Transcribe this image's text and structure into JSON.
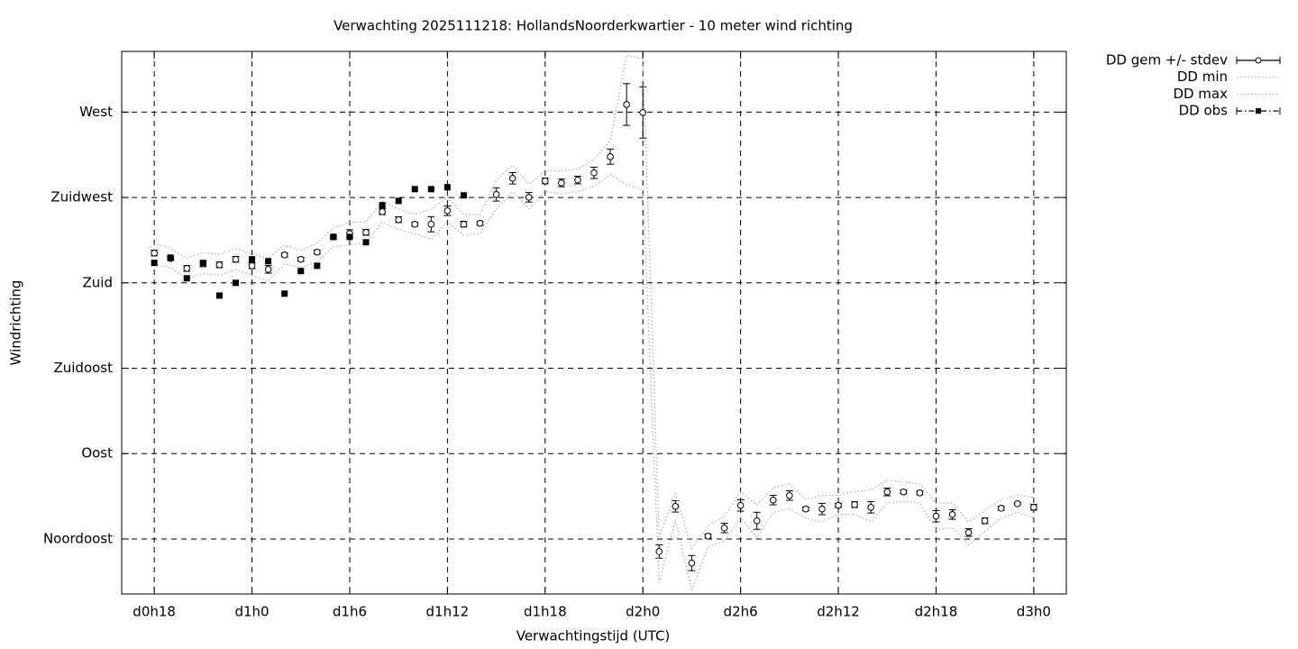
{
  "chart_data": {
    "type": "errorbar",
    "title": "Verwachting 2025111218: HollandsNoorderkwartier - 10 meter wind richting",
    "x_label": "Verwachtingstijd (UTC)",
    "y_label": "Windrichting",
    "x": [
      18,
      19,
      20,
      21,
      22,
      23,
      24,
      25,
      26,
      27,
      28,
      29,
      30,
      31,
      32,
      33,
      34,
      35,
      36,
      37,
      38,
      39,
      40,
      41,
      42,
      43,
      44,
      45,
      46,
      47,
      48,
      49,
      50,
      51,
      52,
      53,
      54,
      55,
      56,
      57,
      58,
      59,
      60,
      61,
      62,
      63,
      64,
      65,
      66,
      67,
      68,
      69,
      70,
      71,
      72
    ],
    "xlim": [
      16,
      74
    ],
    "xticks": [
      {
        "value": 18,
        "label": "d0h18"
      },
      {
        "value": 24,
        "label": "d1h0"
      },
      {
        "value": 30,
        "label": "d1h6"
      },
      {
        "value": 36,
        "label": "d1h12"
      },
      {
        "value": 42,
        "label": "d1h18"
      },
      {
        "value": 48,
        "label": "d2h0"
      },
      {
        "value": 54,
        "label": "d2h6"
      },
      {
        "value": 60,
        "label": "d2h12"
      },
      {
        "value": 66,
        "label": "d2h18"
      },
      {
        "value": 72,
        "label": "d3h0"
      }
    ],
    "ylim": [
      16,
      302
    ],
    "yticks": [
      {
        "value": 45,
        "label": "Noordoost"
      },
      {
        "value": 90,
        "label": "Oost"
      },
      {
        "value": 135,
        "label": "Zuidoost"
      },
      {
        "value": 180,
        "label": "Zuid"
      },
      {
        "value": 225,
        "label": "Zuidwest"
      },
      {
        "value": 270,
        "label": "West"
      }
    ],
    "grid": true,
    "legend": "outside-top-right",
    "series": [
      {
        "name": "DD gem +/- stdev",
        "color": "#000000",
        "marker": "open-circle",
        "line": "none",
        "values": [
          195.7,
          192.8,
          187.6,
          190,
          189.5,
          192.4,
          189,
          187.1,
          194.7,
          192.4,
          196.2,
          204.2,
          206,
          206.6,
          217.5,
          213.3,
          210.9,
          210.9,
          218,
          210.9,
          211.4,
          226.6,
          235.1,
          225.1,
          233.7,
          232.7,
          234.2,
          238,
          246.5,
          274,
          269.8,
          38.4,
          62.2,
          32.3,
          46.5,
          50.8,
          62.7,
          54.6,
          65.5,
          67.9,
          60.8,
          60.8,
          62.7,
          63.1,
          61.7,
          69.8,
          69.8,
          69.3,
          57,
          57.9,
          48.4,
          54.6,
          61.2,
          63.6,
          61.7
        ],
        "errors": [
          1.5,
          1,
          1.5,
          1.5,
          1.5,
          1.5,
          1.5,
          2,
          1,
          1,
          1,
          1,
          2,
          1.5,
          1.5,
          1.5,
          1,
          4,
          2.5,
          1.5,
          1,
          3.5,
          3,
          2.5,
          1.5,
          2,
          2,
          3,
          4,
          11,
          13.5,
          3.5,
          3,
          4,
          1,
          2.5,
          3,
          4.5,
          2.5,
          2.5,
          1,
          3,
          1,
          1.5,
          3,
          2,
          1,
          1,
          3,
          2.5,
          2,
          1.5,
          1,
          0.5,
          1.5
        ]
      },
      {
        "name": "DD min",
        "color": "#aaaaaa",
        "marker": "none",
        "line": "dotted",
        "values": [
          190,
          188,
          182,
          185,
          184,
          187,
          184,
          181,
          190,
          188,
          191,
          199,
          200,
          201,
          212,
          208,
          206,
          203,
          212,
          205,
          206,
          219,
          228,
          219,
          228,
          227,
          228,
          231,
          237,
          232,
          229,
          22,
          55,
          18,
          41,
          44,
          56,
          46,
          59,
          61,
          56,
          54,
          58,
          58,
          54,
          64,
          65,
          64,
          50,
          51,
          42,
          49,
          56,
          59,
          56
        ]
      },
      {
        "name": "DD max",
        "color": "#aaaaaa",
        "marker": "none",
        "line": "dotted",
        "values": [
          201,
          198,
          193,
          196,
          195,
          198,
          195,
          193,
          200,
          197,
          201,
          209,
          212,
          212,
          223,
          219,
          216,
          219,
          225,
          216,
          216,
          234,
          242,
          232,
          239,
          239,
          240,
          245,
          255,
          300,
          298,
          46,
          69,
          40,
          52,
          57,
          70,
          63,
          72,
          74,
          66,
          68,
          68,
          70,
          71,
          76,
          75,
          74,
          64,
          64,
          54,
          60,
          66,
          68,
          67
        ]
      },
      {
        "name": "DD obs",
        "color": "#000000",
        "marker": "filled-square",
        "line": "none",
        "values": [
          190.5,
          193.3,
          182.4,
          190.5,
          173.3,
          180,
          192.4,
          191.4,
          174.3,
          186.2,
          189,
          204.2,
          204.2,
          201.4,
          220.9,
          223.2,
          229.4,
          229.4,
          230.4,
          226.1,
          null,
          null,
          null,
          null,
          null,
          null,
          null,
          null,
          null,
          null,
          null,
          null,
          null,
          null,
          null,
          null,
          null,
          null,
          null,
          null,
          null,
          null,
          null,
          null,
          null,
          null,
          null,
          null,
          null,
          null,
          null,
          null,
          null,
          null,
          null
        ]
      }
    ]
  }
}
